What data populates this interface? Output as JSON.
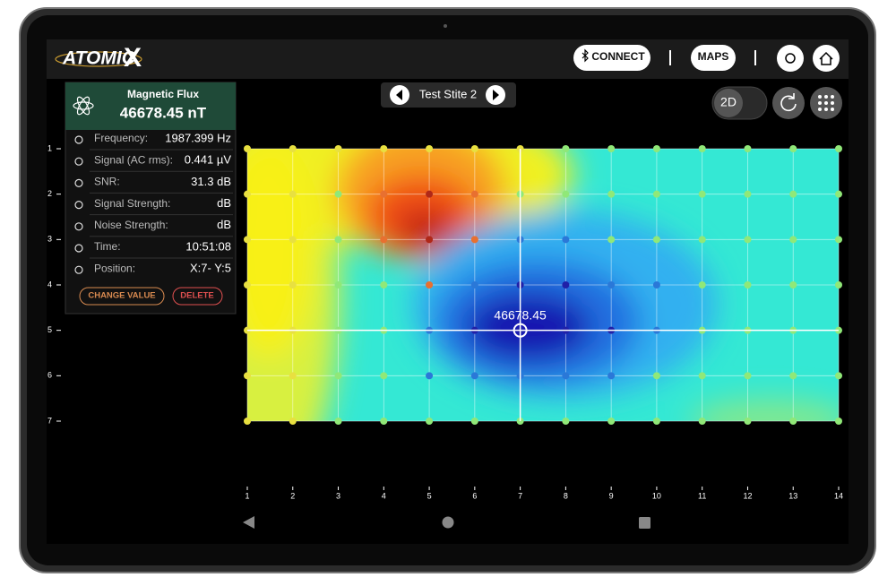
{
  "header": {
    "logo_text": "ATOMIC",
    "logo_mark": "X",
    "connect": "CONNECT",
    "maps": "MAPS"
  },
  "site": "Test Stite 2",
  "view_toggle": "2D",
  "panel": {
    "title": "Magnetic Flux",
    "value": "46678.45 nT",
    "rows": [
      {
        "label": "Frequency:",
        "value": "1987.399 Hz"
      },
      {
        "label": "Signal (AC rms):",
        "value": "0.441 µV"
      },
      {
        "label": "SNR:",
        "value": "31.3 dB"
      },
      {
        "label": "Signal Strength:",
        "value": "dB"
      },
      {
        "label": "Noise Strength:",
        "value": "dB"
      },
      {
        "label": "Time:",
        "value": "10:51:08"
      },
      {
        "label": "Position:",
        "value": "X:7- Y:5"
      }
    ],
    "actions": [
      "CHANGE VALUE",
      "DELETE"
    ]
  },
  "map": {
    "x_labels": [
      "1",
      "2",
      "3",
      "4",
      "5",
      "6",
      "7",
      "8",
      "9",
      "10",
      "11",
      "12",
      "13",
      "14"
    ],
    "y_labels": [
      "1",
      "2",
      "3",
      "4",
      "5",
      "6",
      "7"
    ],
    "cursor_label": "46678.45"
  }
}
